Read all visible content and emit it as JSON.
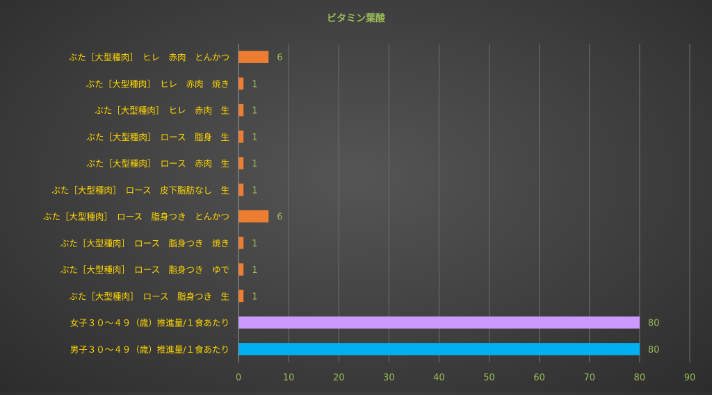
{
  "chart_data": {
    "type": "bar",
    "orientation": "horizontal",
    "title": "ビタミン葉酸",
    "xlabel": "",
    "ylabel": "",
    "xlim": [
      0,
      90
    ],
    "xticks": [
      0,
      10,
      20,
      30,
      40,
      50,
      60,
      70,
      80,
      90
    ],
    "grid": true,
    "legend": "none",
    "data_labels": true,
    "colors": {
      "title": "#9BBB59",
      "tick_labels": "#9BBB59",
      "data_labels": "#9BBB59",
      "category_labels": "#FFD700",
      "gridline": "#6f6f6f",
      "axis": "#9a9a9a"
    },
    "categories": [
      "ぶた［大型種肉］　ヒレ　赤肉　とんかつ",
      "ぶた［大型種肉］　ヒレ　赤肉　焼き",
      "ぶた［大型種肉］　ヒレ　赤肉　生",
      "ぶた［大型種肉］　ロース　脂身　生",
      "ぶた［大型種肉］　ロース　赤肉　生",
      "ぶた［大型種肉］　ロース　皮下脂肪なし　生",
      "ぶた［大型種肉］　ロース　脂身つき　とんかつ",
      "ぶた［大型種肉］　ロース　脂身つき　焼き",
      "ぶた［大型種肉］　ロース　脂身つき　ゆで",
      "ぶた［大型種肉］　ロース　脂身つき　生",
      "女子３０～４９（歳）推進量/１食あたり",
      "男子３０～４９（歳）推進量/１食あたり"
    ],
    "values": [
      6,
      1,
      1,
      1,
      1,
      1,
      6,
      1,
      1,
      1,
      80,
      80
    ],
    "bar_colors": [
      "#ED7D31",
      "#ED7D31",
      "#ED7D31",
      "#ED7D31",
      "#ED7D31",
      "#ED7D31",
      "#ED7D31",
      "#ED7D31",
      "#ED7D31",
      "#ED7D31",
      "#CC99FF",
      "#00B0F0"
    ]
  }
}
